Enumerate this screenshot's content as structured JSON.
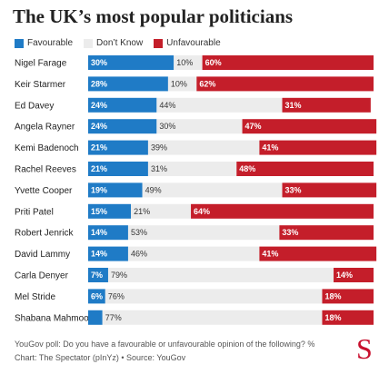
{
  "title": "The UK’s most popular politicians",
  "legend": [
    {
      "label": "Favourable",
      "color": "#1f7bc6"
    },
    {
      "label": "Don’t Know",
      "color": "#ececec"
    },
    {
      "label": "Unfavourable",
      "color": "#c41e2a"
    }
  ],
  "chart_data": {
    "type": "bar",
    "orientation": "horizontal",
    "stacked": true,
    "categories": [
      "Nigel Farage",
      "Keir Starmer",
      "Ed Davey",
      "Angela Rayner",
      "Kemi Badenoch",
      "Rachel Reeves",
      "Yvette Cooper",
      "Priti Patel",
      "Robert Jenrick",
      "David Lammy",
      "Carla Denyer",
      "Mel Stride",
      "Shabana Mahmood"
    ],
    "series": [
      {
        "name": "Favourable",
        "color": "#1f7bc6",
        "values": [
          30,
          28,
          24,
          24,
          21,
          21,
          19,
          15,
          14,
          14,
          7,
          6,
          5
        ]
      },
      {
        "name": "Don’t Know",
        "color": "#ececec",
        "values": [
          10,
          10,
          44,
          30,
          39,
          31,
          49,
          21,
          53,
          46,
          79,
          76,
          77
        ]
      },
      {
        "name": "Unfavourable",
        "color": "#c41e2a",
        "values": [
          60,
          62,
          31,
          47,
          41,
          48,
          33,
          64,
          33,
          41,
          14,
          18,
          18
        ]
      }
    ],
    "labels_shown": [
      [
        "30%",
        "10%",
        "60%"
      ],
      [
        "28%",
        "10%",
        "62%"
      ],
      [
        "24%",
        "44%",
        "31%"
      ],
      [
        "24%",
        "30%",
        "47%"
      ],
      [
        "21%",
        "39%",
        "41%"
      ],
      [
        "21%",
        "31%",
        "48%"
      ],
      [
        "19%",
        "49%",
        "33%"
      ],
      [
        "15%",
        "21%",
        "64%"
      ],
      [
        "14%",
        "53%",
        "33%"
      ],
      [
        "14%",
        "46%",
        "41%"
      ],
      [
        "7%",
        "79%",
        "14%"
      ],
      [
        "6%",
        "76%",
        "18%"
      ],
      [
        "",
        "77%",
        "18%"
      ]
    ],
    "xlim": [
      0,
      100
    ],
    "legend_position": "top-left",
    "grid": false
  },
  "footer": {
    "note": "YouGov poll: Do you have a favourable or unfavourable opinion of the following? %",
    "source": "Chart: The Spectator (pInYz) • Source: YouGov",
    "logo": "S"
  }
}
